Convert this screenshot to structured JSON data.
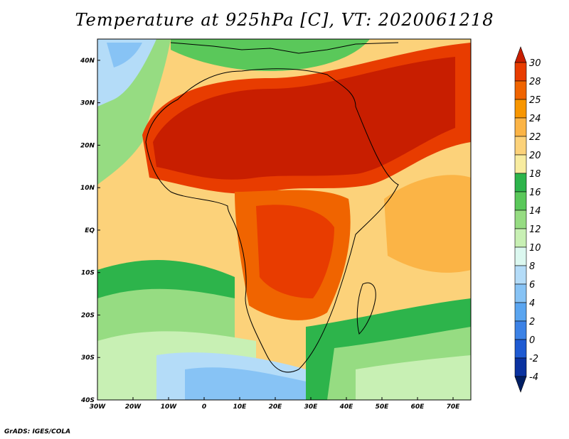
{
  "title": "Temperature at 925hPa [C], VT: 2020061218",
  "footer": "GrADS: IGES/COLA",
  "map": {
    "lat_labels": [
      "40N",
      "30N",
      "20N",
      "10N",
      "EQ",
      "10S",
      "20S",
      "30S",
      "40S"
    ],
    "lon_labels": [
      "30W",
      "20W",
      "10W",
      "0",
      "10E",
      "20E",
      "30E",
      "40E",
      "50E",
      "60E",
      "70E"
    ],
    "lon_range": [
      -30,
      75
    ],
    "lat_range": [
      -40,
      45
    ]
  },
  "colorbar": {
    "labels": [
      "30",
      "28",
      "25",
      "24",
      "22",
      "20",
      "18",
      "16",
      "14",
      "12",
      "10",
      "8",
      "6",
      "4",
      "2",
      "0",
      "-2",
      "-4"
    ],
    "colors": [
      "#c81e00",
      "#e83c00",
      "#f06400",
      "#f89600",
      "#fbb446",
      "#fcd27a",
      "#f8eca0",
      "#2db44b",
      "#5ac85a",
      "#96dc82",
      "#c8f0b4",
      "#dcf8f0",
      "#b4dcf8",
      "#87c3f5",
      "#5aa5f0",
      "#3c82e6",
      "#1e5ad2",
      "#0a32a0",
      "#001e64"
    ]
  }
}
